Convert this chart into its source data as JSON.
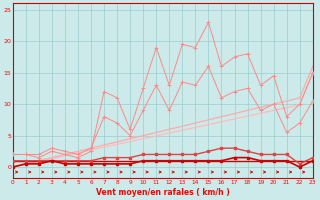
{
  "x": [
    0,
    1,
    2,
    3,
    4,
    5,
    6,
    7,
    8,
    9,
    10,
    11,
    12,
    13,
    14,
    15,
    16,
    17,
    18,
    19,
    20,
    21,
    22,
    23
  ],
  "line_dark1": [
    1,
    1,
    1,
    1,
    1,
    1,
    1,
    1,
    1,
    1,
    1,
    1,
    1,
    1,
    1,
    1,
    1,
    1,
    1,
    1,
    1,
    1,
    1,
    1
  ],
  "line_dark2": [
    1,
    1,
    1,
    1,
    1,
    1,
    1,
    1.5,
    1.5,
    1.5,
    2,
    2,
    2,
    2,
    2,
    2.5,
    3,
    3,
    2.5,
    2,
    2,
    2,
    0.5,
    1.5
  ],
  "line_dark3": [
    0,
    0.5,
    0.5,
    1,
    0.5,
    0.5,
    0.5,
    0.5,
    0.5,
    0.5,
    1,
    1,
    1,
    1,
    1,
    1,
    1,
    1.5,
    1.5,
    1,
    1,
    1,
    0,
    1
  ],
  "line_slope1": [
    0,
    0.5,
    1.0,
    1.5,
    2.0,
    2.5,
    3.0,
    3.5,
    4.0,
    4.5,
    5.0,
    5.5,
    6.0,
    6.5,
    7.0,
    7.5,
    8.0,
    8.5,
    9.0,
    9.5,
    10.0,
    10.5,
    11.0,
    16.0
  ],
  "line_slope2": [
    0,
    0.45,
    0.9,
    1.35,
    1.8,
    2.25,
    2.7,
    3.15,
    3.6,
    4.05,
    4.5,
    4.95,
    5.4,
    5.85,
    6.3,
    6.75,
    7.2,
    7.65,
    8.1,
    8.55,
    9.0,
    9.45,
    9.9,
    15.0
  ],
  "line_jagged": [
    2,
    2,
    2,
    3,
    2.5,
    2,
    3,
    8,
    7,
    5,
    9,
    13,
    9,
    13.5,
    13,
    16,
    11,
    12,
    12.5,
    9,
    10,
    5.5,
    7,
    10.5
  ],
  "line_jagged2": [
    2,
    2,
    1.5,
    2.5,
    2,
    1.5,
    2.5,
    12,
    11,
    6,
    12.5,
    19,
    13,
    19.5,
    19,
    23,
    16,
    17.5,
    18,
    13,
    14.5,
    8,
    10,
    15
  ],
  "xlabel": "Vent moyen/en rafales ( km/h )",
  "xlim": [
    0,
    23
  ],
  "ylim": [
    0,
    26
  ],
  "yticks": [
    0,
    5,
    10,
    15,
    20,
    25
  ],
  "xticks": [
    0,
    1,
    2,
    3,
    4,
    5,
    6,
    7,
    8,
    9,
    10,
    11,
    12,
    13,
    14,
    15,
    16,
    17,
    18,
    19,
    20,
    21,
    22,
    23
  ],
  "bg_color": "#cceaea",
  "grid_color": "#99cccc",
  "color_darkred": "#cc0000",
  "color_medred": "#dd4444",
  "color_pink1": "#ff8888",
  "color_pink2": "#ffaaaa",
  "color_pink3": "#ffbbbb"
}
